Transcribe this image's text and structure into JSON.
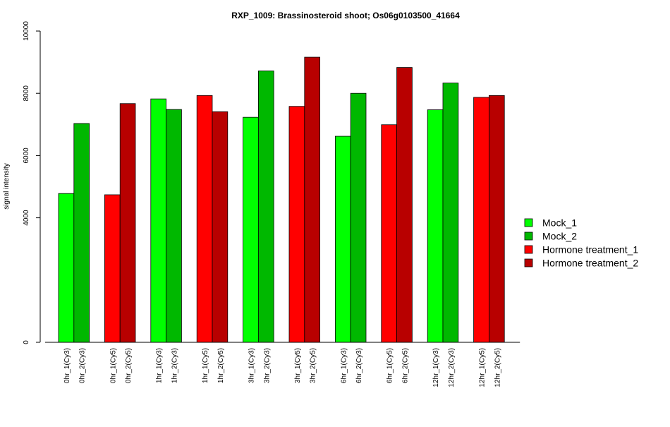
{
  "chart_data": {
    "type": "bar",
    "title": "RXP_1009: Brassinosteroid shoot; Os06g0103500_41664",
    "xlabel": "",
    "ylabel": "signal intensity",
    "ylim": [
      0,
      10000
    ],
    "y_ticks": [
      "0",
      "4000",
      "6000",
      "8000",
      "10000"
    ],
    "y_tick_values": [
      0,
      4000,
      6000,
      8000,
      10000
    ],
    "categories": [
      "0hr_1(Cy3)",
      "0hr_2(Cy3)",
      "0hr_1(Cy5)",
      "0hr_2(Cy5)",
      "1hr_1(Cy3)",
      "1hr_2(Cy3)",
      "1hr_1(Cy5)",
      "1hr_2(Cy5)",
      "3hr_1(Cy3)",
      "3hr_2(Cy3)",
      "3hr_1(Cy5)",
      "3hr_2(Cy5)",
      "6hr_1(Cy3)",
      "6hr_2(Cy3)",
      "6hr_1(Cy5)",
      "6hr_2(Cy5)",
      "12hr_1(Cy3)",
      "12hr_2(Cy3)",
      "12hr_1(Cy5)",
      "12hr_2(Cy5)"
    ],
    "values": [
      4780,
      7030,
      4740,
      7670,
      7820,
      7480,
      7930,
      7410,
      7230,
      8720,
      7580,
      9160,
      6620,
      8000,
      6990,
      8830,
      7470,
      8330,
      7870,
      7930
    ],
    "bar_series_index": [
      0,
      1,
      2,
      3,
      0,
      1,
      2,
      3,
      0,
      1,
      2,
      3,
      0,
      1,
      2,
      3,
      0,
      1,
      2,
      3
    ],
    "series": [
      {
        "name": "Mock_1",
        "color": "#00ff00"
      },
      {
        "name": "Mock_2",
        "color": "#00b800"
      },
      {
        "name": "Hormone treatment_1",
        "color": "#ff0000"
      },
      {
        "name": "Hormone treatment_2",
        "color": "#b80000"
      }
    ],
    "legend_position": "right",
    "grid": false
  }
}
